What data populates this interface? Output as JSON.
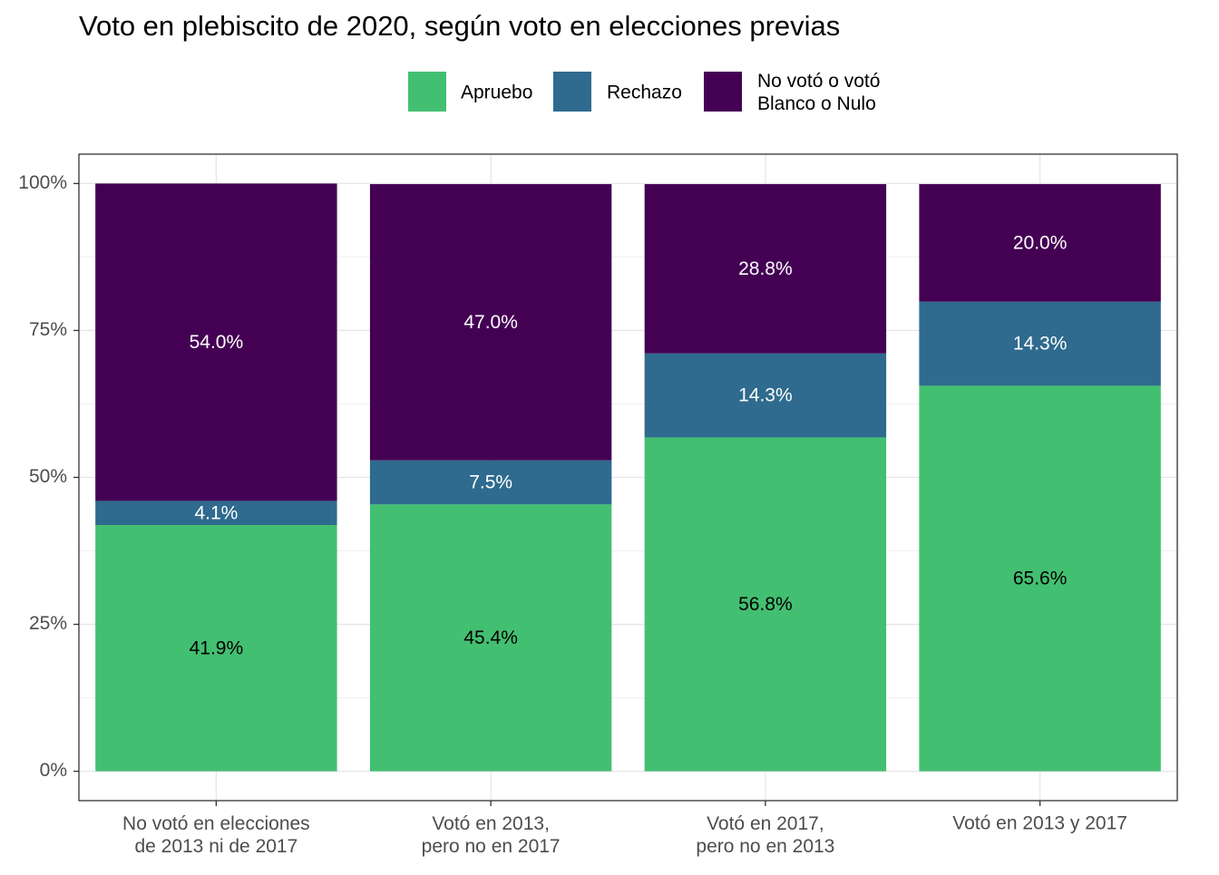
{
  "chart_data": {
    "type": "stacked_bar",
    "title": "Voto en plebiscito de 2020, según voto en elecciones previas",
    "categories": [
      "No votó en elecciones\nde 2013 ni de 2017",
      "Votó en 2013,\npero no en 2017",
      "Votó en 2017,\npero no en 2013",
      "Votó en 2013 y 2017"
    ],
    "series": [
      {
        "name": "Apruebo",
        "color": "#43bf71",
        "values": [
          41.9,
          45.4,
          56.8,
          65.6
        ],
        "value_labels": [
          "41.9%",
          "45.4%",
          "56.8%",
          "65.6%"
        ]
      },
      {
        "name": "Rechazo",
        "color": "#2f6b8e",
        "values": [
          4.1,
          7.5,
          14.3,
          14.3
        ],
        "value_labels": [
          "4.1%",
          "7.5%",
          "14.3%",
          "14.3%"
        ]
      },
      {
        "name": "No votó o votó\nBlanco o Nulo",
        "color": "#440154",
        "values": [
          54.0,
          47.0,
          28.8,
          20.0
        ],
        "value_labels": [
          "54.0%",
          "47.0%",
          "28.8%",
          "20.0%"
        ]
      }
    ],
    "ylim": [
      -5,
      105
    ],
    "yticks": [
      {
        "value": 0,
        "label": "0%"
      },
      {
        "value": 25,
        "label": "25%"
      },
      {
        "value": 50,
        "label": "50%"
      },
      {
        "value": 75,
        "label": "75%"
      },
      {
        "value": 100,
        "label": "100%"
      }
    ],
    "grid": true,
    "legend": "top"
  }
}
